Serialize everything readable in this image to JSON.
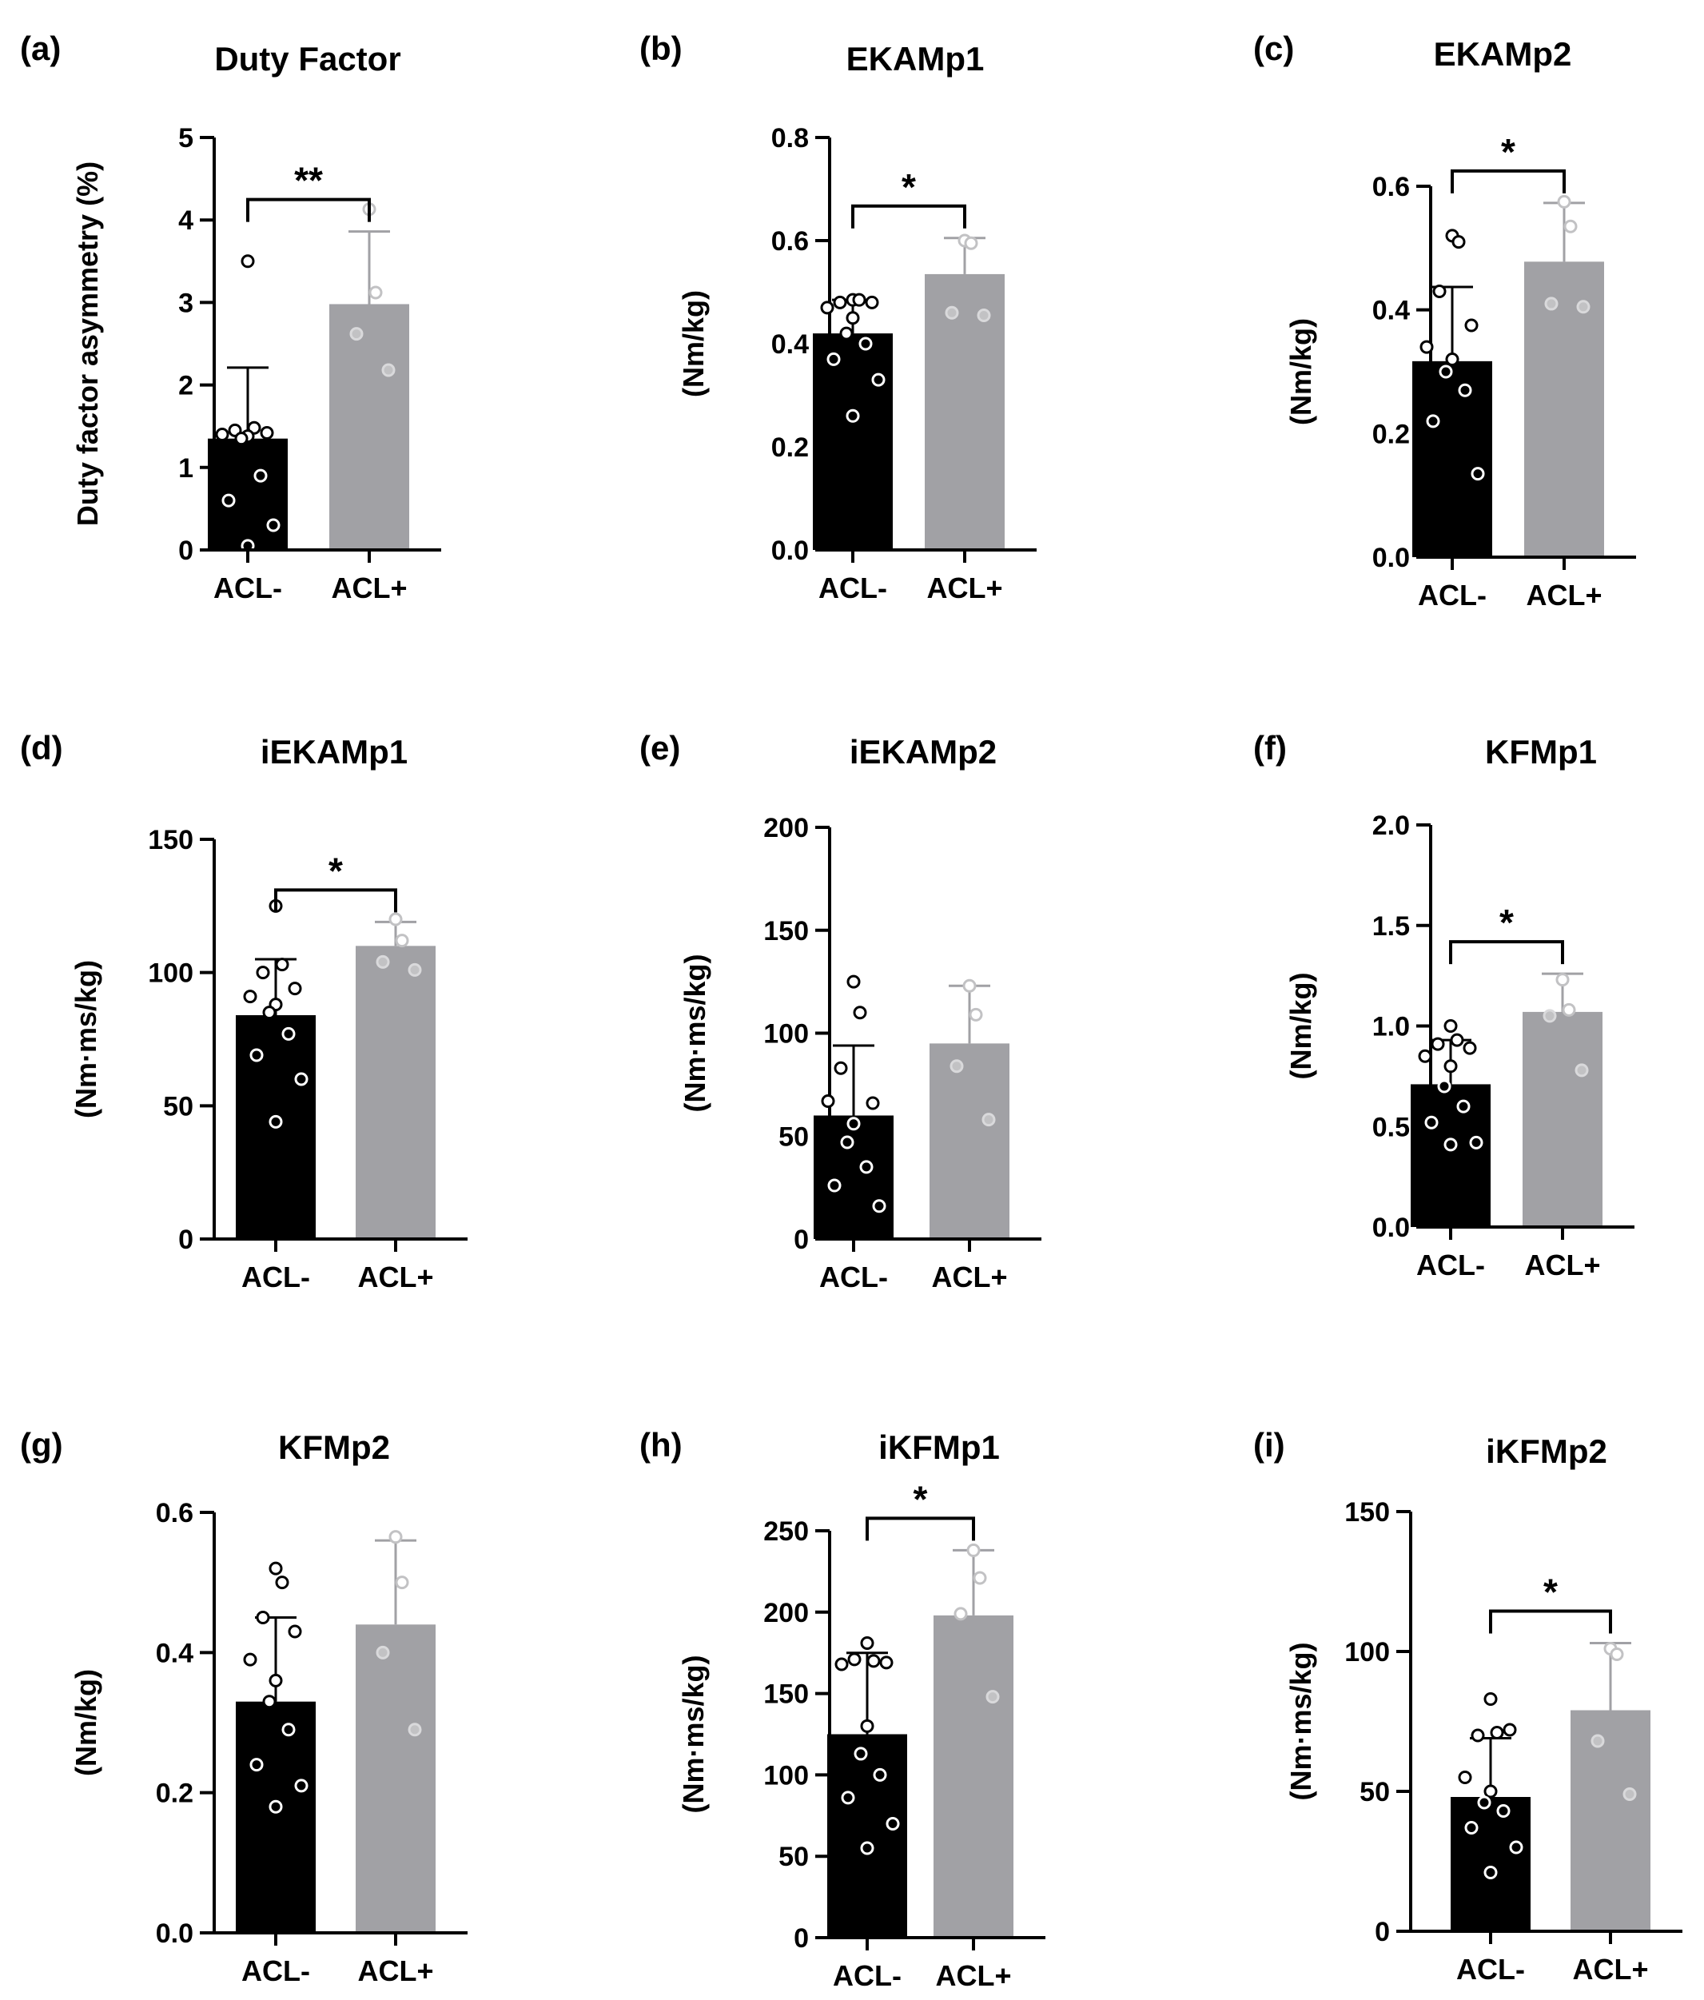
{
  "colors": {
    "acl_minus": "#000000",
    "acl_plus": "#a1a1a5",
    "plus_dot": "#c2c2c4",
    "axis": "#000000"
  },
  "chart_data": [
    {
      "type": "bar",
      "panel_letter": "(a)",
      "title": "Duty Factor",
      "ylabel": "Duty factor asymmetry (%)",
      "categories": [
        "ACL-",
        "ACL+"
      ],
      "ylim": [
        0,
        5
      ],
      "yticks": [
        "0",
        "1",
        "2",
        "3",
        "4",
        "5"
      ],
      "means": [
        1.35,
        2.98
      ],
      "errors": [
        0.86,
        0.88
      ],
      "points": [
        [
          3.5,
          1.48,
          1.45,
          1.42,
          1.4,
          1.38,
          1.35,
          0.9,
          0.6,
          0.3,
          0.05
        ],
        [
          4.13,
          3.12,
          2.62,
          2.18
        ]
      ],
      "significance": "**"
    },
    {
      "type": "bar",
      "panel_letter": "(b)",
      "title": "EKAMp1",
      "ylabel": "(Nm/kg)",
      "categories": [
        "ACL-",
        "ACL+"
      ],
      "ylim": [
        0,
        0.8
      ],
      "yticks": [
        "0.0",
        "0.2",
        "0.4",
        "0.6",
        "0.8"
      ],
      "means": [
        0.42,
        0.535
      ],
      "errors": [
        0.065,
        0.07
      ],
      "points": [
        [
          0.485,
          0.485,
          0.48,
          0.48,
          0.47,
          0.45,
          0.42,
          0.4,
          0.37,
          0.33,
          0.26
        ],
        [
          0.6,
          0.595,
          0.46,
          0.455
        ]
      ],
      "significance": "*"
    },
    {
      "type": "bar",
      "panel_letter": "(c)",
      "title": "EKAMp2",
      "ylabel": "(Nm/kg)",
      "categories": [
        "ACL-",
        "ACL+"
      ],
      "ylim": [
        0,
        0.6
      ],
      "yticks": [
        "0.0",
        "0.2",
        "0.4",
        "0.6"
      ],
      "means": [
        0.317,
        0.478
      ],
      "errors": [
        0.12,
        0.095
      ],
      "points": [
        [
          0.52,
          0.51,
          0.43,
          0.375,
          0.34,
          0.32,
          0.3,
          0.27,
          0.22,
          0.135
        ],
        [
          0.575,
          0.535,
          0.41,
          0.405
        ]
      ],
      "significance": "*"
    },
    {
      "type": "bar",
      "panel_letter": "(d)",
      "title": "iEKAMp1",
      "ylabel": "(Nm·ms/kg)",
      "categories": [
        "ACL-",
        "ACL+"
      ],
      "ylim": [
        0,
        150
      ],
      "yticks": [
        "0",
        "50",
        "100",
        "150"
      ],
      "means": [
        84,
        110
      ],
      "errors": [
        21,
        9
      ],
      "points": [
        [
          125,
          103,
          100,
          94,
          91,
          88,
          85,
          77,
          69,
          60,
          44
        ],
        [
          120,
          112,
          104,
          101
        ]
      ],
      "significance": "*"
    },
    {
      "type": "bar",
      "panel_letter": "(e)",
      "title": "iEKAMp2",
      "ylabel": "(Nm·ms/kg)",
      "categories": [
        "ACL-",
        "ACL+"
      ],
      "ylim": [
        0,
        200
      ],
      "yticks": [
        "0",
        "50",
        "100",
        "150",
        "200"
      ],
      "means": [
        60,
        95
      ],
      "errors": [
        34,
        28
      ],
      "points": [
        [
          125,
          110,
          83,
          66,
          67,
          56,
          47,
          35,
          26,
          16
        ],
        [
          123,
          109,
          84,
          58
        ]
      ],
      "significance": ""
    },
    {
      "type": "bar",
      "panel_letter": "(f)",
      "title": "KFMp1",
      "ylabel": "(Nm/kg)",
      "categories": [
        "ACL-",
        "ACL+"
      ],
      "ylim": [
        0,
        2.0
      ],
      "yticks": [
        "0.0",
        "0.5",
        "1.0",
        "1.5",
        "2.0"
      ],
      "means": [
        0.71,
        1.07
      ],
      "errors": [
        0.22,
        0.19
      ],
      "points": [
        [
          1.0,
          0.93,
          0.91,
          0.89,
          0.85,
          0.8,
          0.7,
          0.6,
          0.52,
          0.42,
          0.41
        ],
        [
          1.23,
          1.08,
          1.05,
          0.78
        ]
      ],
      "significance": "*"
    },
    {
      "type": "bar",
      "panel_letter": "(g)",
      "title": "KFMp2",
      "ylabel": "(Nm/kg)",
      "categories": [
        "ACL-",
        "ACL+"
      ],
      "ylim": [
        0,
        0.6
      ],
      "yticks": [
        "0.0",
        "0.2",
        "0.4",
        "0.6"
      ],
      "means": [
        0.33,
        0.44
      ],
      "errors": [
        0.12,
        0.12
      ],
      "points": [
        [
          0.52,
          0.5,
          0.45,
          0.43,
          0.39,
          0.36,
          0.33,
          0.29,
          0.24,
          0.21,
          0.18
        ],
        [
          0.565,
          0.5,
          0.4,
          0.29
        ]
      ],
      "significance": ""
    },
    {
      "type": "bar",
      "panel_letter": "(h)",
      "title": "iKFMp1",
      "ylabel": "(Nm·ms/kg)",
      "categories": [
        "ACL-",
        "ACL+"
      ],
      "ylim": [
        0,
        250
      ],
      "yticks": [
        "0",
        "50",
        "100",
        "150",
        "200",
        "250"
      ],
      "means": [
        125,
        198
      ],
      "errors": [
        50,
        40
      ],
      "points": [
        [
          181,
          170,
          171,
          169,
          168,
          130,
          113,
          100,
          86,
          70,
          55
        ],
        [
          238,
          221,
          199,
          148
        ]
      ],
      "significance": "*"
    },
    {
      "type": "bar",
      "panel_letter": "(i)",
      "title": "iKFMp2",
      "ylabel": "(Nm·ms/kg)",
      "categories": [
        "ACL-",
        "ACL+"
      ],
      "ylim": [
        0,
        150
      ],
      "yticks": [
        "0",
        "50",
        "100",
        "150"
      ],
      "means": [
        48,
        79
      ],
      "errors": [
        21,
        24
      ],
      "points": [
        [
          83,
          71,
          70,
          72,
          55,
          50,
          46,
          43,
          37,
          30,
          21
        ],
        [
          101,
          99,
          68,
          49
        ]
      ],
      "significance": "*"
    }
  ]
}
